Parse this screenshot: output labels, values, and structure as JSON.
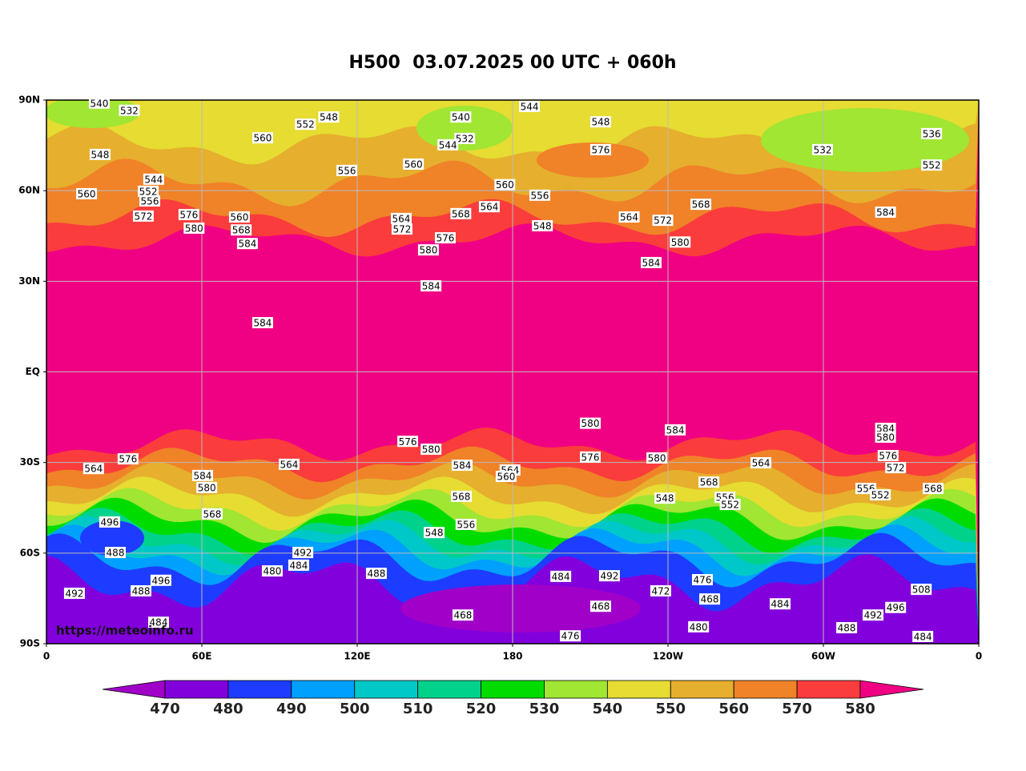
{
  "title": "H500  03.07.2025 00 UTC + 060h",
  "watermark": "https://meteoinfo.ru",
  "map": {
    "xlim": [
      0,
      360
    ],
    "ylim": [
      -90,
      90
    ],
    "xticks": [
      0,
      {
        "value": 60,
        "label": "60E"
      },
      {
        "value": 120,
        "label": "120E"
      },
      180,
      {
        "value": 240,
        "label": "120W"
      },
      {
        "value": 300,
        "label": "60W"
      },
      {
        "value": 360,
        "label": "0"
      }
    ],
    "yticks": [
      {
        "value": 90,
        "label": "90N"
      },
      {
        "value": 60,
        "label": "60N"
      },
      {
        "value": 30,
        "label": "30N"
      },
      {
        "value": 0,
        "label": "EQ"
      },
      {
        "value": -30,
        "label": "30S"
      },
      {
        "value": -60,
        "label": "60S"
      },
      {
        "value": -90,
        "label": "90S"
      }
    ],
    "grid": true,
    "contour_labels": [
      {
        "value": 540,
        "lon": 20.4,
        "lat": 89
      },
      {
        "value": 532,
        "lon": 32,
        "lat": 86.6
      },
      {
        "value": 548,
        "lon": 109,
        "lat": 84.4
      },
      {
        "value": 552,
        "lon": 100,
        "lat": 82
      },
      {
        "value": 560,
        "lon": 83.5,
        "lat": 77.5
      },
      {
        "value": 556,
        "lon": 116,
        "lat": 66.7
      },
      {
        "value": 560,
        "lon": 141.7,
        "lat": 68.8
      },
      {
        "value": 540,
        "lon": 160,
        "lat": 84.4
      },
      {
        "value": 544,
        "lon": 186.5,
        "lat": 87.9
      },
      {
        "value": 532,
        "lon": 161.5,
        "lat": 77.3
      },
      {
        "value": 544,
        "lon": 155,
        "lat": 75.2
      },
      {
        "value": 548,
        "lon": 214,
        "lat": 82.8
      },
      {
        "value": 576,
        "lon": 214,
        "lat": 73.6
      },
      {
        "value": 560,
        "lon": 177,
        "lat": 62
      },
      {
        "value": 564,
        "lon": 171,
        "lat": 54.7
      },
      {
        "value": 556,
        "lon": 190.5,
        "lat": 58.5
      },
      {
        "value": 548,
        "lon": 191.5,
        "lat": 48.4
      },
      {
        "value": 564,
        "lon": 225,
        "lat": 51.3
      },
      {
        "value": 572,
        "lon": 238,
        "lat": 50.2
      },
      {
        "value": 568,
        "lon": 252.7,
        "lat": 55.5
      },
      {
        "value": 580,
        "lon": 244.7,
        "lat": 43
      },
      {
        "value": 584,
        "lon": 233.5,
        "lat": 36.2
      },
      {
        "value": 532,
        "lon": 299.7,
        "lat": 73.6
      },
      {
        "value": 552,
        "lon": 341.8,
        "lat": 68.5
      },
      {
        "value": 536,
        "lon": 341.8,
        "lat": 78.9
      },
      {
        "value": 584,
        "lon": 324,
        "lat": 52.9
      },
      {
        "value": 572,
        "lon": 37.4,
        "lat": 51.6
      },
      {
        "value": 580,
        "lon": 57,
        "lat": 47.6
      },
      {
        "value": 584,
        "lon": 77.6,
        "lat": 42.5
      },
      {
        "value": 548,
        "lon": 20.7,
        "lat": 72
      },
      {
        "value": 560,
        "lon": 15.5,
        "lat": 59
      },
      {
        "value": 544,
        "lon": 41.4,
        "lat": 63.8
      },
      {
        "value": 552,
        "lon": 39.3,
        "lat": 59.8
      },
      {
        "value": 556,
        "lon": 39.9,
        "lat": 56.6
      },
      {
        "value": 576,
        "lon": 55,
        "lat": 52.1
      },
      {
        "value": 560,
        "lon": 74.5,
        "lat": 51.3
      },
      {
        "value": 568,
        "lon": 75.2,
        "lat": 47
      },
      {
        "value": 564,
        "lon": 137,
        "lat": 50.8
      },
      {
        "value": 572,
        "lon": 137.3,
        "lat": 47.3
      },
      {
        "value": 568,
        "lon": 160,
        "lat": 52.4
      },
      {
        "value": 576,
        "lon": 154,
        "lat": 44.4
      },
      {
        "value": 580,
        "lon": 147.5,
        "lat": 40.4
      },
      {
        "value": 584,
        "lon": 148.5,
        "lat": 28.5
      },
      {
        "value": 584,
        "lon": 83.5,
        "lat": 16.3
      },
      {
        "value": 580,
        "lon": 210,
        "lat": -17
      },
      {
        "value": 576,
        "lon": 210,
        "lat": -28.2
      },
      {
        "value": 584,
        "lon": 242.8,
        "lat": -19.2
      },
      {
        "value": 580,
        "lon": 148.5,
        "lat": -25.6
      },
      {
        "value": 576,
        "lon": 139.5,
        "lat": -23
      },
      {
        "value": 584,
        "lon": 160.5,
        "lat": -30.9
      },
      {
        "value": 568,
        "lon": 160.2,
        "lat": -41.2
      },
      {
        "value": 564,
        "lon": 93.7,
        "lat": -30.6
      },
      {
        "value": 584,
        "lon": 60.3,
        "lat": -34.3
      },
      {
        "value": 580,
        "lon": 61.9,
        "lat": -38.3
      },
      {
        "value": 568,
        "lon": 64,
        "lat": -47
      },
      {
        "value": 564,
        "lon": 18.2,
        "lat": -32
      },
      {
        "value": 576,
        "lon": 31.5,
        "lat": -28.8
      },
      {
        "value": 564,
        "lon": 179,
        "lat": -32.5
      },
      {
        "value": 560,
        "lon": 177.5,
        "lat": -34.6
      },
      {
        "value": 496,
        "lon": 24.4,
        "lat": -49.7
      },
      {
        "value": 488,
        "lon": 26.6,
        "lat": -59.8
      },
      {
        "value": 492,
        "lon": 10.8,
        "lat": -73.3
      },
      {
        "value": 484,
        "lon": 43.3,
        "lat": -82.9
      },
      {
        "value": 488,
        "lon": 36.5,
        "lat": -72.5
      },
      {
        "value": 496,
        "lon": 44.2,
        "lat": -69
      },
      {
        "value": 492,
        "lon": 99,
        "lat": -59.8
      },
      {
        "value": 484,
        "lon": 97.4,
        "lat": -64
      },
      {
        "value": 480,
        "lon": 87.2,
        "lat": -65.9
      },
      {
        "value": 488,
        "lon": 127.4,
        "lat": -66.7
      },
      {
        "value": 556,
        "lon": 162,
        "lat": -50.5
      },
      {
        "value": 548,
        "lon": 149.7,
        "lat": -53.2
      },
      {
        "value": 484,
        "lon": 198.6,
        "lat": -67.7
      },
      {
        "value": 492,
        "lon": 217.4,
        "lat": -67.5
      },
      {
        "value": 468,
        "lon": 160.8,
        "lat": -80.5
      },
      {
        "value": 468,
        "lon": 214,
        "lat": -77.6
      },
      {
        "value": 476,
        "lon": 202.3,
        "lat": -87.4
      },
      {
        "value": 472,
        "lon": 237.2,
        "lat": -72.5
      },
      {
        "value": 476,
        "lon": 253.3,
        "lat": -68.8
      },
      {
        "value": 468,
        "lon": 256.1,
        "lat": -75.2
      },
      {
        "value": 480,
        "lon": 251.8,
        "lat": -84.4
      },
      {
        "value": 484,
        "lon": 283.3,
        "lat": -76.8
      },
      {
        "value": 488,
        "lon": 309,
        "lat": -84.7
      },
      {
        "value": 492,
        "lon": 319.2,
        "lat": -80.5
      },
      {
        "value": 484,
        "lon": 338.4,
        "lat": -87.6
      },
      {
        "value": 508,
        "lon": 337.8,
        "lat": -72
      },
      {
        "value": 496,
        "lon": 327.9,
        "lat": -78
      },
      {
        "value": 564,
        "lon": 275.9,
        "lat": -30.1
      },
      {
        "value": 568,
        "lon": 255.8,
        "lat": -36.5
      },
      {
        "value": 556,
        "lon": 262,
        "lat": -41.5
      },
      {
        "value": 552,
        "lon": 264,
        "lat": -43.9
      },
      {
        "value": 548,
        "lon": 238.8,
        "lat": -41.8
      },
      {
        "value": 580,
        "lon": 235.7,
        "lat": -28.5
      },
      {
        "value": 576,
        "lon": 325,
        "lat": -27.7
      },
      {
        "value": 572,
        "lon": 327.9,
        "lat": -31.7
      },
      {
        "value": 584,
        "lon": 324,
        "lat": -18.7
      },
      {
        "value": 580,
        "lon": 324,
        "lat": -21.6
      },
      {
        "value": 556,
        "lon": 316.4,
        "lat": -38.6
      },
      {
        "value": 552,
        "lon": 322,
        "lat": -40.7
      },
      {
        "value": 568,
        "lon": 342.4,
        "lat": -38.6
      }
    ]
  },
  "colorbar": {
    "levels": [
      470,
      480,
      490,
      500,
      510,
      520,
      530,
      540,
      550,
      560,
      570,
      580
    ],
    "colors": [
      "#a000c8",
      "#8200dc",
      "#1e3cff",
      "#00a0ff",
      "#00c8c8",
      "#00d28c",
      "#00dc00",
      "#a0e632",
      "#e6dc32",
      "#e6af2d",
      "#f08228",
      "#fa3c3c",
      "#f00082"
    ]
  }
}
